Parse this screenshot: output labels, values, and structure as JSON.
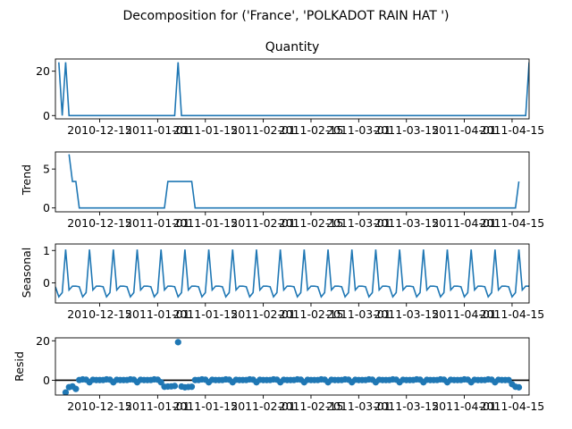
{
  "figure": {
    "suptitle": "Decomposition for ('France', 'POLKADOT RAIN HAT ')"
  },
  "chart_data": [
    {
      "type": "line",
      "title": "Quantity",
      "ylabel": "",
      "ylim": [
        -1.5,
        25.5
      ],
      "y_ticks": [
        "0",
        "20"
      ],
      "x_ticks": [
        "2010-12-15",
        "2011-01-01",
        "2011-01-15",
        "2011-02-01",
        "2011-02-15",
        "2011-03-01",
        "2011-03-15",
        "2011-04-01",
        "2011-04-15"
      ],
      "points": [
        [
          "2010-12-03",
          24
        ],
        [
          "2010-12-04",
          0
        ],
        [
          "2010-12-05",
          24
        ],
        [
          "2010-12-06",
          0
        ],
        [
          "2011-01-06",
          0
        ],
        [
          "2011-01-07",
          24
        ],
        [
          "2011-01-08",
          0
        ],
        [
          "2011-04-19",
          0
        ],
        [
          "2011-04-20",
          24
        ]
      ]
    },
    {
      "type": "line",
      "title": "",
      "ylabel": "Trend",
      "ylim": [
        -0.5,
        7.2
      ],
      "y_ticks": [
        "0",
        "5"
      ],
      "x_ticks": [
        "2010-12-15",
        "2011-01-01",
        "2011-01-15",
        "2011-02-01",
        "2011-02-15",
        "2011-03-01",
        "2011-03-15",
        "2011-04-01",
        "2011-04-15"
      ],
      "points": [
        [
          "2010-12-06",
          6.9
        ],
        [
          "2010-12-07",
          3.4
        ],
        [
          "2010-12-08",
          3.4
        ],
        [
          "2010-12-09",
          0
        ],
        [
          "2011-01-03",
          0
        ],
        [
          "2011-01-04",
          3.4
        ],
        [
          "2011-01-11",
          3.4
        ],
        [
          "2011-01-12",
          0
        ],
        [
          "2011-04-16",
          0
        ],
        [
          "2011-04-17",
          3.4
        ]
      ]
    },
    {
      "type": "line",
      "title": "",
      "ylabel": "Seasonal",
      "ylim": [
        -0.62,
        1.2
      ],
      "y_ticks": [
        "0",
        "1"
      ],
      "x_ticks": [
        "2010-12-15",
        "2011-01-01",
        "2011-01-15",
        "2011-02-01",
        "2011-02-15",
        "2011-03-01",
        "2011-03-15",
        "2011-04-01",
        "2011-04-15"
      ],
      "period_days": 7,
      "pattern": [
        -0.12,
        -0.43,
        -0.3,
        1.03,
        -0.22,
        -0.1,
        -0.1
      ],
      "first_date": "2010-12-02",
      "last_date": "2011-04-20"
    },
    {
      "type": "scatter",
      "title": "",
      "ylabel": "Resid",
      "ylim": [
        -7.5,
        21.5
      ],
      "y_ticks": [
        "0",
        "20"
      ],
      "x_ticks": [
        "2010-12-15",
        "2011-01-01",
        "2011-01-15",
        "2011-02-01",
        "2011-02-15",
        "2011-03-01",
        "2011-03-15",
        "2011-04-01",
        "2011-04-15"
      ],
      "zero_line": true,
      "first_date": "2010-12-05",
      "last_date": "2011-04-17",
      "points": [
        [
          "2010-12-05",
          -6.2
        ],
        [
          "2010-12-06",
          -3.5
        ],
        [
          "2010-12-07",
          -3.1
        ],
        [
          "2010-12-08",
          -4.4
        ],
        [
          "2011-01-03",
          -3.3
        ],
        [
          "2011-01-04",
          -3.2
        ],
        [
          "2011-01-05",
          -3.1
        ],
        [
          "2011-01-06",
          -2.9
        ],
        [
          "2011-01-07",
          19.3
        ],
        [
          "2011-01-08",
          -3.2
        ],
        [
          "2011-01-09",
          -3.6
        ],
        [
          "2011-01-10",
          -3.4
        ],
        [
          "2011-01-11",
          -3.3
        ],
        [
          "2011-04-15",
          -2.0
        ],
        [
          "2011-04-16",
          -3.3
        ],
        [
          "2011-04-17",
          -3.6
        ]
      ],
      "background_pattern": [
        0.12,
        0.43,
        0.3,
        -1.03,
        0.22,
        0.1,
        0.1
      ]
    }
  ]
}
